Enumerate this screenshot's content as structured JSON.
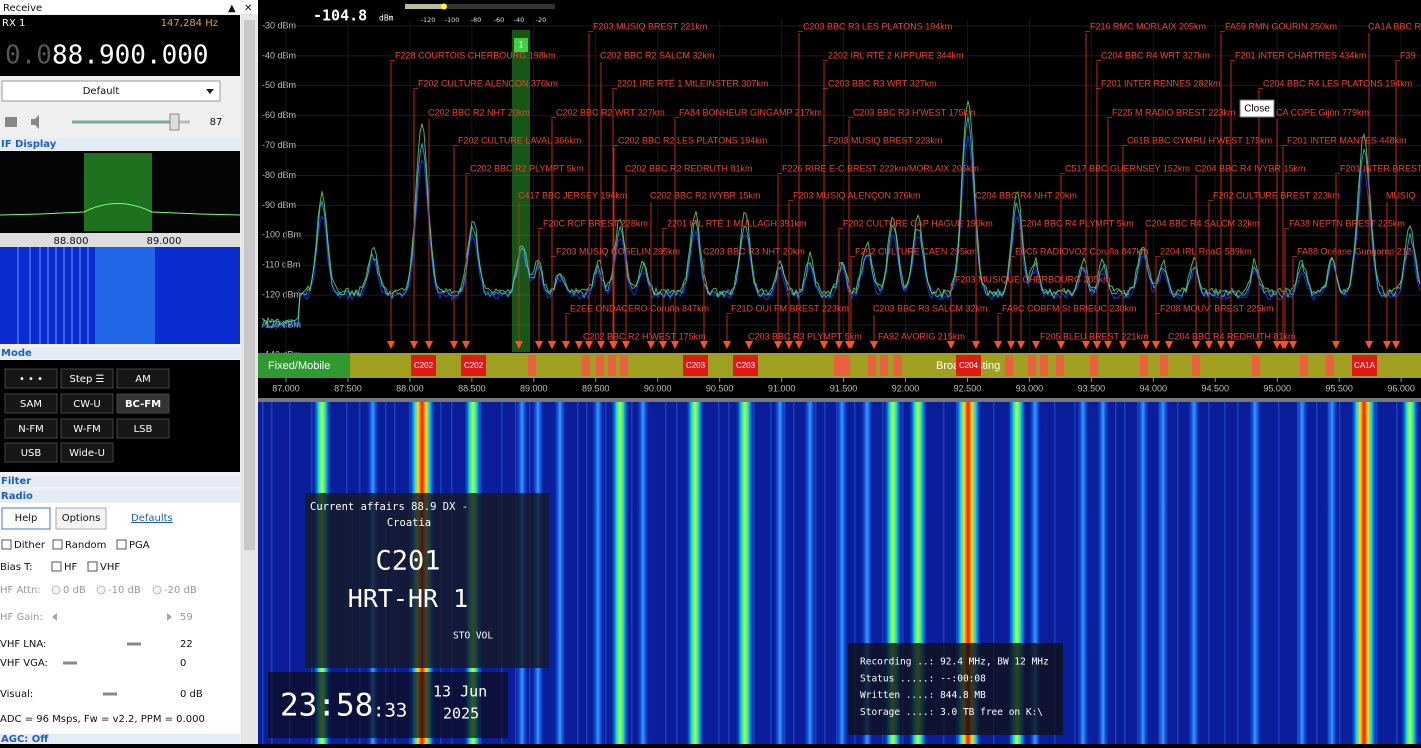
{
  "left_panel": {
    "header": "Receive",
    "collapse": "▲",
    "close": "✕",
    "rx": "RX 1",
    "offset": "147,284 Hz",
    "freq_prefix": "0.0",
    "freq_main": "88.900.000",
    "preset": "Default",
    "volume": "87",
    "if_display": "IF Display",
    "if_axis": [
      "88.800",
      "89.000"
    ],
    "mode_header": "Mode",
    "modes": [
      "• • •",
      "Step ☰",
      "AM",
      "SAM",
      "CW-U",
      "BC-FM",
      "N-FM",
      "W-FM",
      "LSB",
      "USB",
      "Wide-U"
    ],
    "filter_header": "Filter",
    "radio_header": "Radio",
    "help": "Help",
    "options": "Options",
    "defaults": "Defaults",
    "checks": [
      "Dither",
      "Random",
      "PGA"
    ],
    "bias_t": "Bias T:",
    "bias_opts": [
      "HF",
      "VHF"
    ],
    "hf_attn": "HF Attn:",
    "attn_opts": [
      "0 dB",
      "-10 dB",
      "-20 dB"
    ],
    "hf_gain": "HF Gain:",
    "hf_gain_val": "59",
    "vhf_lna": "VHF LNA:",
    "vhf_lna_val": "22",
    "vhf_vga": "VHF VGA:",
    "vhf_vga_val": "0",
    "visual": "Visual:",
    "visual_val": "0 dB",
    "status_line": "ADC = 96 Msps, Fw = v2.2, PPM = 0.000",
    "agc": "AGC: Off"
  },
  "spectrum": {
    "level": "-104.8",
    "level_unit": "dBm",
    "meter_ticks": [
      "-120",
      "-100",
      "-80",
      "-60",
      "-40",
      "-20"
    ],
    "filter_label": "1",
    "y_labels": [
      "-30 dBm",
      "-40 dBm",
      "-50 dBm",
      "-60 dBm",
      "-70 dBm",
      "-80 dBm",
      "-90 dBm",
      "-100 dBm",
      "-110 dBm",
      "-120 dBm",
      "-130 dBm",
      "-140 dBm"
    ],
    "x_labels": [
      "87.000",
      "87.500",
      "88.000",
      "88.500",
      "89.000",
      "89.500",
      "90.000",
      "90.500",
      "91.000",
      "91.500",
      "92.000",
      "92.500",
      "93.000",
      "93.500",
      "94.000",
      "94.500",
      "95.000",
      "95.500",
      "96.000"
    ],
    "band_fixed": "Fixed/Mobile",
    "band_broadcast": "Broadcasting",
    "band_markers": [
      "C202",
      "C202",
      "C203",
      "C203",
      "C204",
      "CA1A"
    ],
    "tooltip": "Close",
    "stations": [
      "_F203 MUSIQ BREST 221km",
      "_C203 BBC R3 LES PLATONS 194km",
      "_F216 RMC MORLAIX 205km",
      "_FA59 RMN GOURIN 250km",
      "CA1A BBC R",
      "_F228 COURTOIS CHERBOURG 198km",
      "C202 BBC R2 SALCM 32km",
      "_2202 IRL RTÉ 2 KIPPURE 344km",
      "_C204 BBC R4 WRT 327km",
      "_F201 INTER CHARTRES 434km",
      "_F39",
      "_F202 CULTURE ALENCON 376km",
      "_2201 IRE RTÉ 1 MtLEINSTER 307km",
      "_C203 BBC R3 WRT 327km",
      "_F201 INTER RENNES 282km",
      "_C204 BBC R4 LES PLATONS 194km",
      "C202 BBC R2 NHT 20km",
      "_C202 BBC R2 WRT 327km",
      "_FA84 BONHEUR GINGAMP 217km",
      "_C203 BBC R3 H'WEST 175km",
      "_F225 M RADIO BREST 223km",
      "CA COPE Gijón 779km",
      "_F202 CULTURE LAVAL 366km",
      "_C202 BBC R2 LES PLATONS 194km",
      "_F203 MUSIQ BREST 223km",
      "_C61B BBC CYMRU H'WEST 175km",
      "_F201 INTER MANTES 448km",
      "_C202 BBC R2 PLYMPT 5km",
      "C202 BBC R2 REDRUTH 81km",
      "_F226 RIRE E-C BREST 222km/MORLAIX 205km",
      "_C517 BBC GUERNSEY 152km",
      "C204 BBC R4 IVYBR 15km",
      "_F201 INTER BREST",
      "C417 BBC JERSEY 194km",
      "C202 BBC R2 IVYBR 15km",
      "_F203 MUSIQ ALENÇON 376km",
      "C204 BBC R4 NHT 20km",
      "_F202 CULTURE BREST 223km",
      "MUSIQ",
      "_F20C RCF BREST 228km",
      "_2201 IRL RTÉ 1 MULLAGH 391km",
      "_F202 CULTURE CAP HAGUE 190km",
      "C204 BBC R4 PLYMPT 5km",
      "C204 BBC R4 SALCM 32km",
      "_FA38 NEPTN BREST 225km",
      "_F203 MUSIQ COSELIN 295km",
      "C203 BBC R3 NHT 20km",
      "_F202 CULTURE CAEN 295km",
      "_E0C5 RADIOVOZ Coruña 847km",
      "_2204 IRL RnaG 589km",
      "_FA88 Océane Gungamp 212",
      "_F203 MUSIQUE CHERBOURG 205km",
      "_E2EE ONDACERO Coruña 847km",
      "_F21D OUI FM BREST 223km",
      "C203 BBC R3 SALCM 32km",
      "_FA9C COBFM St BRIEUC 230km",
      "_F208 MOUV' BREST 225km",
      "_C202 BBC R2 H'WEST 175km",
      "C203 BBC R3 PLYMPT 5km",
      "_FA92 AVORIG 215km",
      "_F205 BLEU BREST 221km",
      "C204 BBC R4 REDRUTH 81km"
    ]
  },
  "waterfall": {
    "rds_line": "Current affairs  88.9  DX  -",
    "country": "Croatia",
    "pi_code": "C201",
    "station": "HRT-HR 1",
    "flags": "STO VOL",
    "time": "23:58",
    "seconds": ":33",
    "date": "13 Jun",
    "year": "2025",
    "recording": [
      "Recording ..: 92.4 MHz, BW 12 MHz",
      "Status .....: --:00:08",
      "Written ....: 844.8 MB",
      "Storage ....: 3.0 TB free on K:\\"
    ]
  }
}
